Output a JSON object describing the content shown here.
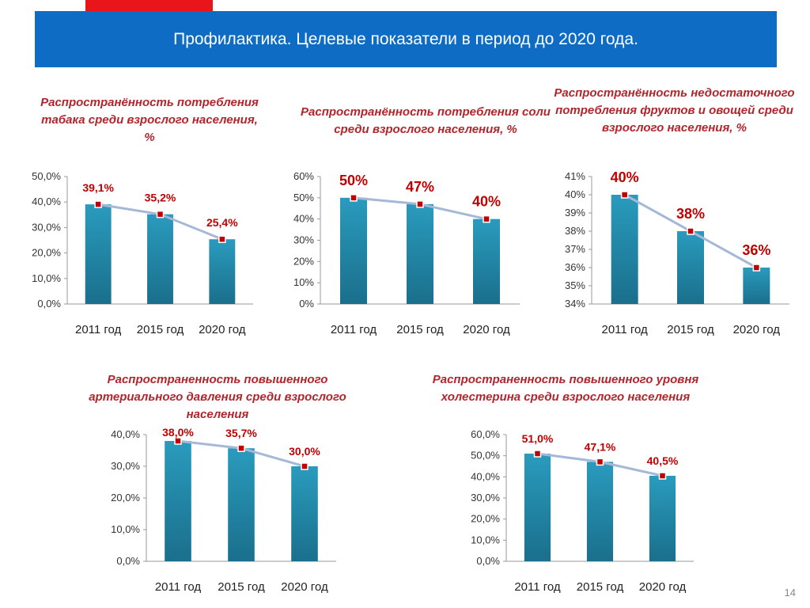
{
  "slide": {
    "title": "Профилактика. Целевые показатели в период до 2020 года.",
    "page_number": "14"
  },
  "colors": {
    "banner": "#0f6cc4",
    "accent_tab": "#e8151b",
    "title_text": "#b1262c",
    "bar": "#1f8aa9",
    "line": "#a5b8d8",
    "label": "#c00000"
  },
  "chart_titles": [
    "Распространённость потребления табака среди взрослого населения, %",
    "Распространённость потребления соли среди взрослого населения, %",
    "Распространённость недостаточного потребления фруктов и овощей среди взрослого населения, %",
    "Распространенность повышенного артериального давления среди взрослого населения",
    "Распространенность повышенного уровня холестерина среди взрослого населения"
  ],
  "chart_data": [
    {
      "type": "bar",
      "title": "Распространённость потребления табака среди взрослого населения, %",
      "categories": [
        "2011 год",
        "2015 год",
        "2020 год"
      ],
      "values": [
        39.1,
        35.2,
        25.4
      ],
      "labels": [
        "39,1%",
        "35,2%",
        "25,4%"
      ],
      "ylim": [
        0,
        50
      ],
      "yticks": [
        "0,0%",
        "10,0%",
        "20,0%",
        "30,0%",
        "40,0%",
        "50,0%"
      ],
      "overlay": "line"
    },
    {
      "type": "bar",
      "title": "Распространённость потребления соли среди взрослого населения, %",
      "categories": [
        "2011 год",
        "2015 год",
        "2020 год"
      ],
      "values": [
        50,
        47,
        40
      ],
      "labels": [
        "50%",
        "47%",
        "40%"
      ],
      "ylim": [
        0,
        60
      ],
      "yticks": [
        "0%",
        "10%",
        "20%",
        "30%",
        "40%",
        "50%",
        "60%"
      ],
      "overlay": "line"
    },
    {
      "type": "bar",
      "title": "Распространённость недостаточного потребления фруктов и овощей среди взрослого населения, %",
      "categories": [
        "2011 год",
        "2015 год",
        "2020 год"
      ],
      "values": [
        40,
        38,
        36
      ],
      "labels": [
        "40%",
        "38%",
        "36%"
      ],
      "ylim": [
        34,
        41
      ],
      "yticks": [
        "34%",
        "35%",
        "36%",
        "37%",
        "38%",
        "39%",
        "40%",
        "41%"
      ],
      "overlay": "line"
    },
    {
      "type": "bar",
      "title": "Распространенность повышенного артериального давления среди взрослого населения",
      "categories": [
        "2011 год",
        "2015 год",
        "2020 год"
      ],
      "values": [
        38.0,
        35.7,
        30.0
      ],
      "labels": [
        "38,0%",
        "35,7%",
        "30,0%"
      ],
      "ylim": [
        0,
        40
      ],
      "yticks": [
        "0,0%",
        "10,0%",
        "20,0%",
        "30,0%",
        "40,0%"
      ],
      "overlay": "line"
    },
    {
      "type": "bar",
      "title": "Распространенность повышенного уровня холестерина среди взрослого населения",
      "categories": [
        "2011 год",
        "2015 год",
        "2020 год"
      ],
      "values": [
        51.0,
        47.1,
        40.5
      ],
      "labels": [
        "51,0%",
        "47,1%",
        "40,5%"
      ],
      "ylim": [
        0,
        60
      ],
      "yticks": [
        "0,0%",
        "10,0%",
        "20,0%",
        "30,0%",
        "40,0%",
        "50,0%",
        "60,0%"
      ],
      "overlay": "line"
    }
  ]
}
